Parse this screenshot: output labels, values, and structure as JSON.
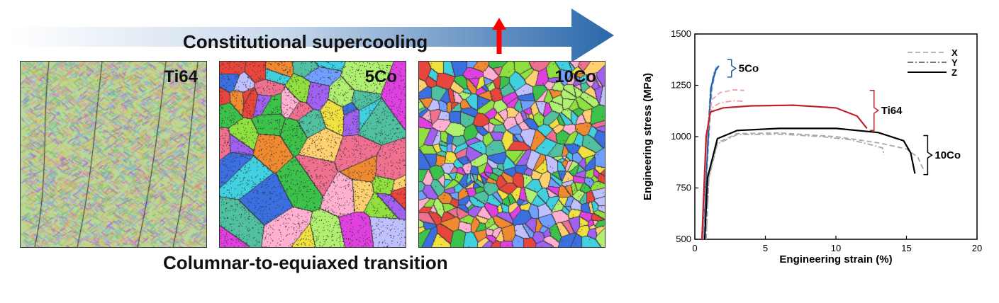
{
  "banner": {
    "title": "Constitutional supercooling",
    "arrow_color": "#1f5fa6",
    "up_arrow_color": "#ff0000"
  },
  "panels": [
    {
      "label": "Ti64",
      "microstructure": "columnar"
    },
    {
      "label": "5Co",
      "microstructure": "mixed"
    },
    {
      "label": "10Co",
      "microstructure": "equiaxed"
    }
  ],
  "bottom_title": "Columnar-to-equiaxed transition",
  "chart_data": {
    "type": "line",
    "xlabel": "Engineering strain (%)",
    "ylabel": "Engineering stress (MPa)",
    "xlim": [
      0,
      20
    ],
    "ylim": [
      500,
      1500
    ],
    "xticks": [
      0,
      5,
      10,
      15,
      20
    ],
    "yticks": [
      500,
      750,
      1000,
      1250,
      1500
    ],
    "legend": {
      "placement": "top-right",
      "entries": [
        {
          "label": "X",
          "style": "dashed"
        },
        {
          "label": "Y",
          "style": "dashdot"
        },
        {
          "label": "Z",
          "style": "solid"
        }
      ]
    },
    "groups": [
      {
        "label": "5Co",
        "color": "#1f5fa6",
        "light_color": "#86a9d6",
        "series": [
          {
            "direction": "X",
            "points": [
              [
                0.6,
                500
              ],
              [
                1.0,
                1000
              ],
              [
                1.2,
                1220
              ],
              [
                1.4,
                1300
              ],
              [
                1.6,
                1330
              ]
            ]
          },
          {
            "direction": "Y",
            "points": [
              [
                0.5,
                500
              ],
              [
                0.9,
                1000
              ],
              [
                1.1,
                1230
              ],
              [
                1.35,
                1310
              ],
              [
                1.55,
                1340
              ]
            ]
          },
          {
            "direction": "Z",
            "points": [
              [
                0.55,
                500
              ],
              [
                0.95,
                1000
              ],
              [
                1.15,
                1240
              ],
              [
                1.45,
                1320
              ],
              [
                1.7,
                1345
              ]
            ]
          }
        ]
      },
      {
        "label": "Ti64",
        "color": "#c0202a",
        "light_color": "#f0a0a0",
        "series": [
          {
            "direction": "X",
            "points": [
              [
                0.55,
                500
              ],
              [
                0.85,
                1000
              ],
              [
                1.2,
                1180
              ],
              [
                1.8,
                1215
              ],
              [
                2.8,
                1228
              ],
              [
                3.5,
                1225
              ]
            ]
          },
          {
            "direction": "Y",
            "points": [
              [
                0.55,
                500
              ],
              [
                0.85,
                1000
              ],
              [
                1.2,
                1140
              ],
              [
                1.8,
                1165
              ],
              [
                2.8,
                1175
              ],
              [
                3.4,
                1172
              ]
            ]
          },
          {
            "direction": "Z",
            "points": [
              [
                0.5,
                500
              ],
              [
                0.8,
                1000
              ],
              [
                1.1,
                1120
              ],
              [
                2,
                1140
              ],
              [
                4,
                1150
              ],
              [
                7,
                1153
              ],
              [
                10,
                1140
              ],
              [
                11.5,
                1100
              ],
              [
                12.2,
                1040
              ]
            ]
          }
        ]
      },
      {
        "label": "10Co",
        "color": "#000000",
        "light_color": "#a8a8a8",
        "series": [
          {
            "direction": "X",
            "points": [
              [
                0.8,
                500
              ],
              [
                1.0,
                800
              ],
              [
                1.6,
                970
              ],
              [
                3,
                1015
              ],
              [
                6,
                1018
              ],
              [
                10,
                1000
              ],
              [
                13,
                970
              ],
              [
                15,
                940
              ],
              [
                15.8,
                900
              ],
              [
                16.2,
                840
              ]
            ]
          },
          {
            "direction": "Y",
            "points": [
              [
                0.8,
                500
              ],
              [
                1.0,
                800
              ],
              [
                1.6,
                965
              ],
              [
                3,
                1010
              ],
              [
                6,
                1012
              ],
              [
                9,
                1000
              ],
              [
                11,
                985
              ],
              [
                12.5,
                960
              ],
              [
                13.3,
                945
              ],
              [
                13.4,
                910
              ]
            ]
          },
          {
            "direction": "Z",
            "points": [
              [
                0.7,
                500
              ],
              [
                0.9,
                800
              ],
              [
                1.6,
                990
              ],
              [
                3,
                1030
              ],
              [
                6,
                1040
              ],
              [
                10,
                1040
              ],
              [
                13,
                1020
              ],
              [
                14.8,
                980
              ],
              [
                15.3,
                920
              ],
              [
                15.6,
                820
              ]
            ]
          }
        ]
      }
    ]
  }
}
